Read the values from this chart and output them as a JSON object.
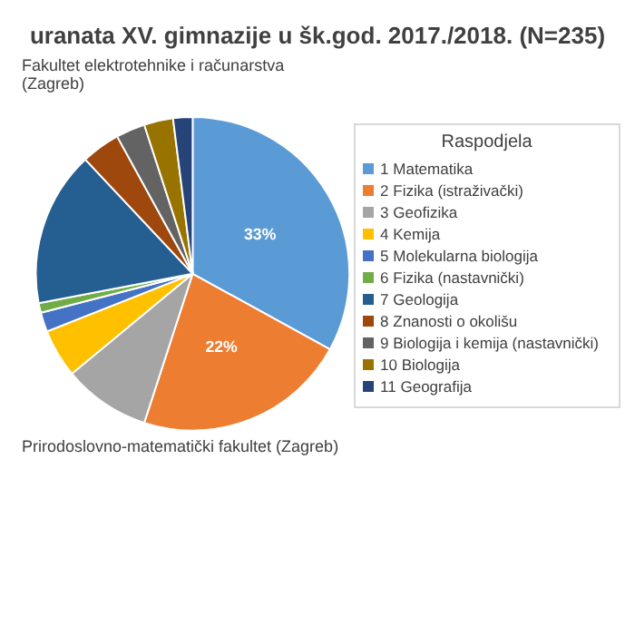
{
  "chart_data": {
    "type": "pie",
    "title": "uranata XV. gimnazije u šk.god. 2017./2018. (N=235)",
    "legend_title": "Raspodjela",
    "legend": "right",
    "categories": [
      "1 Matematika",
      "2 Fizika (istraživački)",
      "3 Geofizika",
      "4 Kemija",
      "5 Molekularna biologija",
      "6 Fizika (nastavnički)",
      "7 Geologija",
      "8 Znanosti o okolišu",
      "9 Biologija i kemija (nastavnički)",
      "10 Biologija",
      "11 Geografija"
    ],
    "values": [
      33,
      22,
      9,
      5,
      2,
      1,
      16,
      4,
      3,
      3,
      2
    ],
    "value_labels": [
      "33%",
      "22%",
      null,
      null,
      null,
      null,
      null,
      null,
      null,
      null,
      null
    ],
    "colors": [
      "#5b9bd5",
      "#ed7d31",
      "#a5a5a5",
      "#ffc000",
      "#4472c4",
      "#70ad47",
      "#255e91",
      "#9e480e",
      "#636363",
      "#997300",
      "#264478"
    ],
    "annotations": [
      "Fakultet elektrotehnike i računarstva (Zagreb)",
      "Prirodoslovno-matematički fakultet (Zagreb)"
    ]
  }
}
